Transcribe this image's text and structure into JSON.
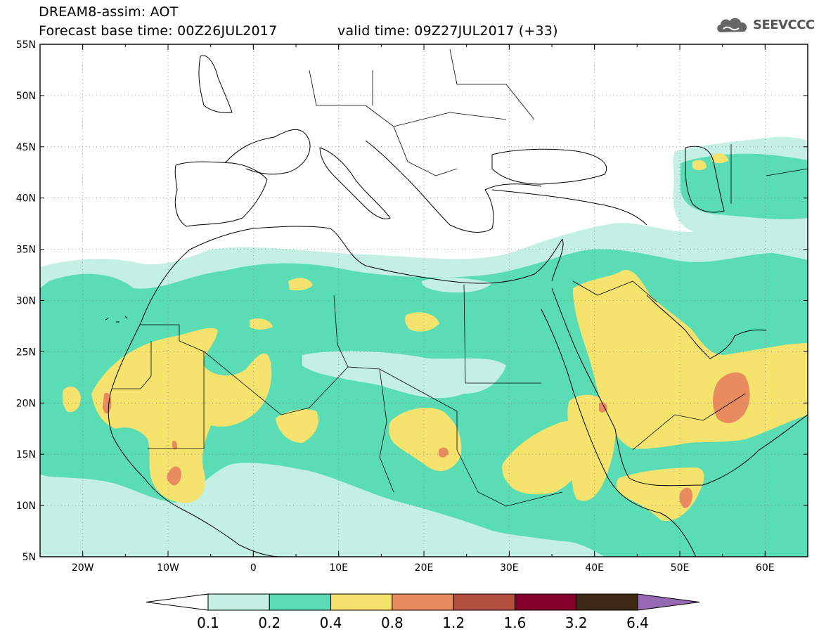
{
  "header": {
    "line1": "DREAM8-assim: AOT",
    "base": "Forecast base time: 00Z26JUL2017",
    "valid": "valid time: 09Z27JUL2017 (+33)"
  },
  "logo": {
    "text": "SEEVCCC",
    "icon": "cloud-icon"
  },
  "map": {
    "lon_range": [
      -25,
      65
    ],
    "lat_range": [
      5,
      55
    ],
    "lat_labels": [
      "55N",
      "50N",
      "45N",
      "40N",
      "35N",
      "30N",
      "25N",
      "20N",
      "15N",
      "10N",
      "5N"
    ],
    "lon_labels": [
      "20W",
      "10W",
      "0",
      "10E",
      "20E",
      "30E",
      "40E",
      "50E",
      "60E"
    ]
  },
  "colorbar": {
    "labels": [
      "0.1",
      "0.2",
      "0.4",
      "0.8",
      "1.2",
      "1.6",
      "3.2",
      "6.4"
    ],
    "colors": [
      "#ffffff",
      "#c4f0e4",
      "#5adcb4",
      "#f5e36e",
      "#e88c60",
      "#b45040",
      "#820028",
      "#3c2814",
      "#9669b4"
    ]
  }
}
